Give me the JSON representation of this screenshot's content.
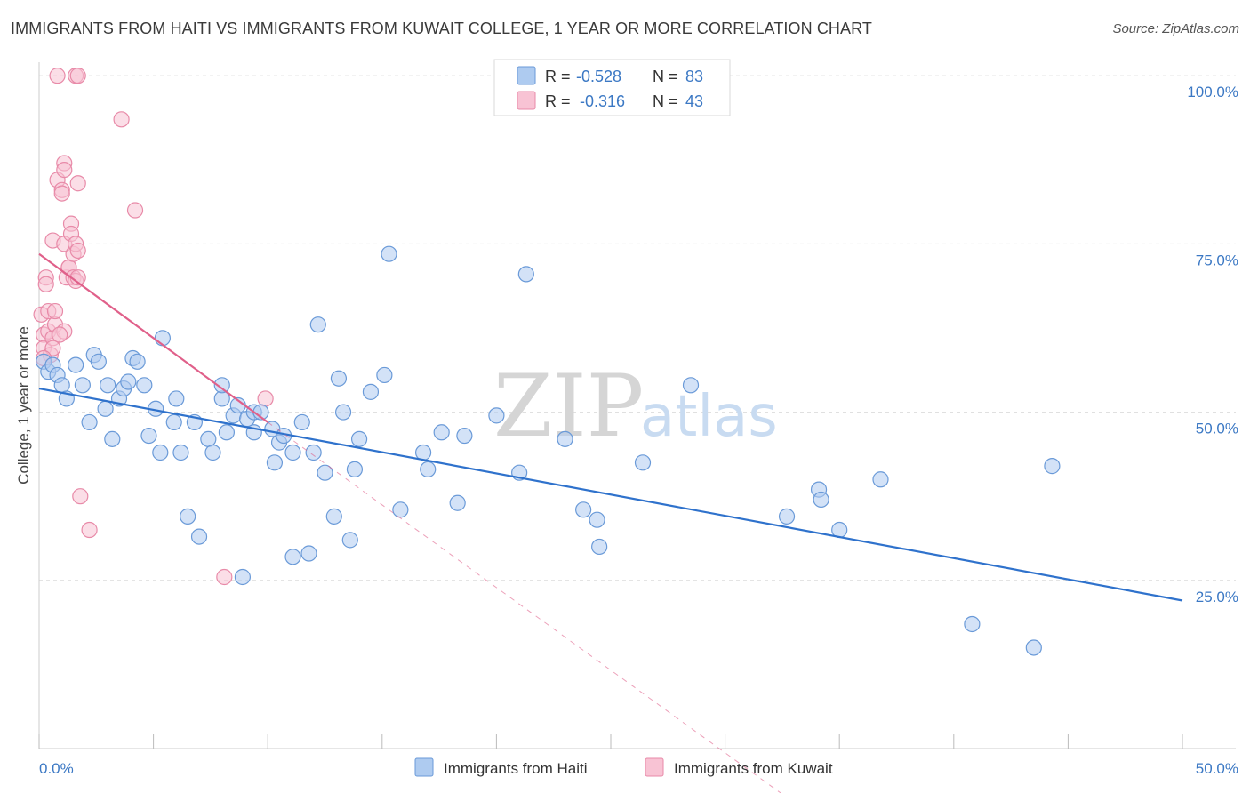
{
  "title": "IMMIGRANTS FROM HAITI VS IMMIGRANTS FROM KUWAIT COLLEGE, 1 YEAR OR MORE CORRELATION CHART",
  "source": "Source: ZipAtlas.com",
  "watermark": {
    "zip": "ZIP",
    "atlas": "atlas"
  },
  "legend_top": [
    {
      "r_label": "R =",
      "r_value": "-0.528",
      "n_label": "N =",
      "n_value": "83"
    },
    {
      "r_label": "R =",
      "r_value": "-0.316",
      "n_label": "N =",
      "n_value": "43"
    }
  ],
  "colors": {
    "haiti_fill": "#aecbf0",
    "haiti_stroke": "#6a9ad8",
    "haiti_line": "#2f72cc",
    "kuwait_fill": "#f8c3d4",
    "kuwait_stroke": "#e88aa8",
    "kuwait_line": "#e0608a",
    "tick_text": "#3b78c4",
    "grid": "#dcdcdc"
  },
  "chart_data": {
    "type": "scatter",
    "title": "IMMIGRANTS FROM HAITI VS IMMIGRANTS FROM KUWAIT COLLEGE, 1 YEAR OR MORE CORRELATION CHART",
    "xlabel": "",
    "ylabel": "College, 1 year or more",
    "xlim": [
      0,
      50
    ],
    "ylim": [
      0,
      102
    ],
    "x_tick_labels": [
      "0.0%",
      "50.0%"
    ],
    "y_tick_labels": [
      "100.0%",
      "75.0%",
      "50.0%",
      "25.0%"
    ],
    "y_ticks": [
      100,
      75,
      50,
      25
    ],
    "grid": true,
    "legend_placement": "top-center and bottom",
    "series": [
      {
        "name": "Immigrants from Haiti",
        "R": -0.528,
        "N": 83,
        "trend": {
          "x0": 0,
          "y0": 53.5,
          "x1": 50,
          "y1": 22.0
        },
        "points": [
          [
            0.2,
            57.5
          ],
          [
            0.4,
            56
          ],
          [
            0.6,
            57.0
          ],
          [
            0.8,
            55.5
          ],
          [
            1.0,
            54.0
          ],
          [
            1.2,
            52.0
          ],
          [
            1.6,
            57.0
          ],
          [
            1.9,
            54.0
          ],
          [
            2.2,
            48.5
          ],
          [
            2.4,
            58.5
          ],
          [
            2.6,
            57.5
          ],
          [
            2.9,
            50.5
          ],
          [
            3.0,
            54.0
          ],
          [
            3.2,
            46.0
          ],
          [
            3.5,
            52.0
          ],
          [
            3.7,
            53.5
          ],
          [
            3.9,
            54.5
          ],
          [
            4.1,
            58.0
          ],
          [
            4.3,
            57.5
          ],
          [
            4.6,
            54.0
          ],
          [
            4.8,
            46.5
          ],
          [
            5.1,
            50.5
          ],
          [
            5.3,
            44.0
          ],
          [
            5.4,
            61.0
          ],
          [
            6.0,
            52.0
          ],
          [
            6.2,
            44.0
          ],
          [
            5.9,
            48.5
          ],
          [
            6.5,
            34.5
          ],
          [
            6.8,
            48.5
          ],
          [
            7.0,
            31.5
          ],
          [
            7.4,
            46.0
          ],
          [
            7.6,
            44.0
          ],
          [
            8.0,
            52.0
          ],
          [
            8.0,
            54.0
          ],
          [
            8.2,
            47.0
          ],
          [
            8.5,
            49.5
          ],
          [
            8.7,
            51.0
          ],
          [
            8.9,
            25.5
          ],
          [
            9.1,
            49.0
          ],
          [
            9.4,
            50.0
          ],
          [
            9.7,
            50.0
          ],
          [
            9.4,
            47.0
          ],
          [
            10.2,
            47.5
          ],
          [
            10.3,
            42.5
          ],
          [
            10.5,
            45.5
          ],
          [
            10.7,
            46.5
          ],
          [
            11.1,
            28.5
          ],
          [
            11.1,
            44.0
          ],
          [
            11.5,
            48.5
          ],
          [
            11.8,
            29.0
          ],
          [
            12.0,
            44.0
          ],
          [
            12.2,
            63.0
          ],
          [
            12.5,
            41.0
          ],
          [
            12.9,
            34.5
          ],
          [
            13.1,
            55.0
          ],
          [
            13.3,
            50.0
          ],
          [
            13.6,
            31.0
          ],
          [
            13.8,
            41.5
          ],
          [
            14.0,
            46.0
          ],
          [
            14.5,
            53.0
          ],
          [
            15.1,
            55.5
          ],
          [
            15.8,
            35.5
          ],
          [
            15.3,
            73.5
          ],
          [
            16.8,
            44.0
          ],
          [
            17.0,
            41.5
          ],
          [
            17.6,
            47.0
          ],
          [
            18.3,
            36.5
          ],
          [
            18.6,
            46.5
          ],
          [
            20.0,
            49.5
          ],
          [
            21.0,
            41.0
          ],
          [
            21.3,
            70.5
          ],
          [
            23.0,
            46.0
          ],
          [
            23.8,
            35.5
          ],
          [
            24.4,
            34.0
          ],
          [
            24.5,
            30.0
          ],
          [
            26.4,
            42.5
          ],
          [
            28.5,
            54.0
          ],
          [
            32.7,
            34.5
          ],
          [
            34.1,
            38.5
          ],
          [
            34.2,
            37.0
          ],
          [
            35.0,
            32.5
          ],
          [
            36.8,
            40.0
          ],
          [
            40.8,
            18.5
          ],
          [
            43.5,
            15.0
          ],
          [
            44.3,
            42.0
          ]
        ]
      },
      {
        "name": "Immigrants from Kuwait",
        "R": -0.316,
        "N": 43,
        "trend": {
          "x0": 0,
          "y0": 73.5,
          "x1": 10,
          "y1": 48.5
        },
        "trend_dashed": {
          "x0": 10,
          "y0": 48.5,
          "x1": 33,
          "y1": -8
        },
        "points": [
          [
            0.1,
            64.5
          ],
          [
            0.2,
            61.5
          ],
          [
            0.2,
            59.5
          ],
          [
            0.3,
            70.0
          ],
          [
            0.3,
            69.0
          ],
          [
            0.4,
            65.0
          ],
          [
            0.4,
            62.0
          ],
          [
            0.5,
            58.5
          ],
          [
            0.6,
            75.5
          ],
          [
            0.6,
            61.0
          ],
          [
            0.7,
            63.0
          ],
          [
            0.7,
            65.0
          ],
          [
            0.8,
            100.0
          ],
          [
            0.8,
            84.5
          ],
          [
            1.0,
            83.0
          ],
          [
            1.0,
            82.5
          ],
          [
            1.1,
            75.0
          ],
          [
            1.1,
            87.0
          ],
          [
            1.1,
            86.0
          ],
          [
            1.1,
            62.0
          ],
          [
            1.2,
            70.0
          ],
          [
            1.3,
            71.5
          ],
          [
            1.3,
            71.5
          ],
          [
            1.4,
            78.0
          ],
          [
            1.4,
            76.5
          ],
          [
            1.5,
            70.0
          ],
          [
            1.5,
            73.5
          ],
          [
            1.6,
            69.5
          ],
          [
            1.6,
            75.0
          ],
          [
            1.7,
            74.0
          ],
          [
            1.7,
            70.0
          ],
          [
            1.6,
            100.0
          ],
          [
            1.7,
            100.0
          ],
          [
            1.7,
            84.0
          ],
          [
            1.8,
            37.5
          ],
          [
            2.2,
            32.5
          ],
          [
            3.6,
            93.5
          ],
          [
            4.2,
            80.0
          ],
          [
            8.1,
            25.5
          ],
          [
            9.9,
            52.0
          ],
          [
            0.6,
            59.5
          ],
          [
            0.2,
            58.0
          ],
          [
            0.9,
            61.5
          ]
        ]
      }
    ]
  }
}
